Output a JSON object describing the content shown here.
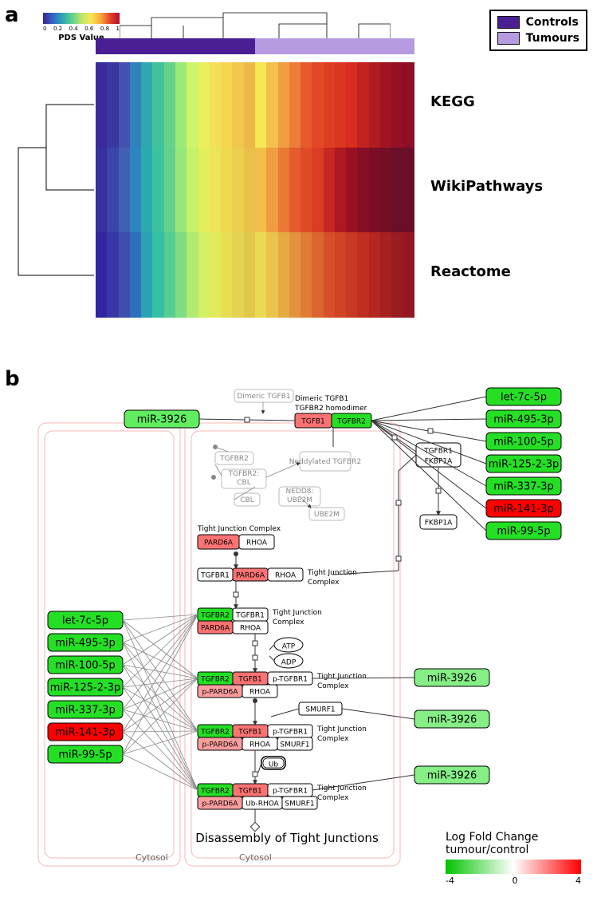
{
  "panel_labels": {
    "a": "a",
    "b": "b"
  },
  "group_legend": {
    "controls": {
      "label": "Controls",
      "color": "#4b1e94"
    },
    "tumours": {
      "label": "Tumours",
      "color": "#b79be0"
    }
  },
  "pds_colorbar": {
    "title": "PDS Value",
    "ticks": [
      "0",
      "0.2",
      "0.4",
      "0.6",
      "0.8",
      "1"
    ],
    "stops": [
      "#3a2590",
      "#3464c8",
      "#2fa3b5",
      "#5ccf90",
      "#b9e56b",
      "#f7e755",
      "#f8a93a",
      "#e5452a",
      "#b00d28"
    ]
  },
  "heatmap": {
    "row_labels": [
      "KEGG",
      "WikiPathways",
      "Reactome"
    ],
    "column_groups": [
      {
        "group": "Controls",
        "fraction": 0.5
      },
      {
        "group": "Tumours",
        "fraction": 0.5
      }
    ],
    "cell_colors": {
      "KEGG_left": [
        "#3a2a9c",
        "#39389e",
        "#4352b0",
        "#3082bd",
        "#2ea7ae",
        "#41c29b",
        "#66d18a",
        "#9de977",
        "#cff36a",
        "#e9ee5e",
        "#f4e056",
        "#f5d551",
        "#f1c84c",
        "#eeb846"
      ],
      "KEGG_right": [
        "#f7e755",
        "#f3c14b",
        "#f09e41",
        "#ec7d38",
        "#e65a2f",
        "#e24826",
        "#de3f23",
        "#db3621",
        "#d62d1e",
        "#c32222",
        "#af1b20",
        "#a01421",
        "#951022",
        "#8c0f24"
      ],
      "Wiki_left": [
        "#3730a0",
        "#3b46a9",
        "#4060b6",
        "#2f85bf",
        "#2aa9b0",
        "#3dc29e",
        "#63d18c",
        "#97e778",
        "#c6f16a",
        "#e3ee5d",
        "#eee457",
        "#efd852",
        "#edce4f",
        "#e8c04a"
      ],
      "Wiki_right": [
        "#f3bf4a",
        "#ef9d40",
        "#ea7936",
        "#e45c2e",
        "#e04b27",
        "#da3e22",
        "#c62722",
        "#ad1921",
        "#961223",
        "#860f24",
        "#7b0e26",
        "#730e27",
        "#6b0e28",
        "#6b0e28"
      ],
      "Reactome_left": [
        "#3426a3",
        "#3738a5",
        "#3d4eaf",
        "#2e6fbc",
        "#29a2b4",
        "#35c0a3",
        "#56cd92",
        "#7fdc82",
        "#b0ea71",
        "#d4f064",
        "#e3ea5a",
        "#e7de54",
        "#e5d250",
        "#e1c64c"
      ],
      "Reactome_right": [
        "#ecd952",
        "#eac34c",
        "#e6aa44",
        "#e3933d",
        "#df7c36",
        "#da662f",
        "#d5502a",
        "#d04325",
        "#c93822",
        "#bf2e20",
        "#b32720",
        "#a72121",
        "#9b1b22",
        "#921824"
      ]
    }
  },
  "lfc_legend": {
    "title": "Log Fold Change tumour/control",
    "min": -4,
    "mid": 0,
    "max": 4,
    "min_color": "#00c400",
    "mid_color": "#ffffff",
    "max_color": "#ff0000"
  },
  "pathway": {
    "title": "Disassembly of Tight Junctions",
    "compartment_label": "Cytosol",
    "top_label1": "Dimeric TGFB1",
    "top_label2": "TGFBR2 homodimer",
    "fkbp_upper": "TGFBR1",
    "fkbp_lower": "FKBP1A",
    "fkbp_single": "FKBP1A",
    "complexes": {
      "dimeric": {
        "tgfb1": {
          "label": "TGFB1",
          "color": "#fd7373"
        },
        "tgfbr2": {
          "label": "TGFBR2",
          "color": "#25df25"
        }
      },
      "tjc": {
        "pard6a": {
          "label": "PARD6A",
          "color": "#fd7373"
        },
        "rhoa": {
          "label": "RHOA",
          "color": "#ffffff"
        }
      },
      "tjc_label": "Tight Junction Complex",
      "row1": [
        {
          "label": "TGFBR1",
          "color": "#ffffff"
        },
        {
          "label": "PARD6A",
          "color": "#fd7373"
        },
        {
          "label": "RHOA",
          "color": "#ffffff"
        }
      ],
      "row1_side": "Tight Junction Complex",
      "row2_top": [
        {
          "label": "TGFBR2",
          "color": "#25df25"
        },
        {
          "label": "TGFBR1",
          "color": "#ffffff"
        }
      ],
      "row2_bot": [
        {
          "label": "PARD6A",
          "color": "#fd7373"
        },
        {
          "label": "RHOA",
          "color": "#ffffff"
        }
      ],
      "row2_side": "Tight Junction Complex",
      "atp": "ATP",
      "adp": "ADP",
      "row3_top": [
        {
          "label": "TGFBR2",
          "color": "#25df25"
        },
        {
          "label": "TGFB1",
          "color": "#fd7373"
        },
        {
          "label": "p-TGFBR1",
          "color": "#ffffff"
        }
      ],
      "row3_bot": [
        {
          "label": "p-PARD6A",
          "color": "#fd9e9e"
        },
        {
          "label": "RHOA",
          "color": "#ffffff"
        }
      ],
      "row3_side": "Tight Junction Complex",
      "smurf": "SMURF1",
      "row4_top": [
        {
          "label": "TGFBR2",
          "color": "#25df25"
        },
        {
          "label": "TGFB1",
          "color": "#fd7373"
        },
        {
          "label": "p-TGFBR1",
          "color": "#ffffff"
        }
      ],
      "row4_bot": [
        {
          "label": "p-PARD6A",
          "color": "#fd9e9e"
        },
        {
          "label": "RHOA",
          "color": "#ffffff"
        },
        {
          "label": "SMURF1",
          "color": "#ffffff"
        }
      ],
      "row4_side": "Tight Junction Complex",
      "ub": "Ub",
      "row5_top": [
        {
          "label": "TGFBR2",
          "color": "#25df25"
        },
        {
          "label": "TGFB1",
          "color": "#fd7373"
        },
        {
          "label": "p-TGFBR1",
          "color": "#ffffff"
        }
      ],
      "row5_bot": [
        {
          "label": "p-PARD6A",
          "color": "#fd9e9e"
        },
        {
          "label": "Ub-RHOA",
          "color": "#ffffff"
        },
        {
          "label": "SMURF1",
          "color": "#ffffff"
        }
      ],
      "row5_side": "Tight Junction Complex"
    },
    "mir3926": {
      "label": "miR-3926",
      "color": "#60ed60"
    },
    "mir3926_right": {
      "label": "miR-3926",
      "color": "#85ee85"
    },
    "mir3926_r3": {
      "label": "miR-3926",
      "color": "#85ee85"
    },
    "mir3926_r4": {
      "label": "miR-3926",
      "color": "#85ee85"
    },
    "gray_nodes": {
      "dimeric_tgfb1": "Dimeric TGFB1",
      "tgfbr2": "TGFBR2",
      "tgfbr2_cbl": "TGFBR2: CBL",
      "cbl": "CBL",
      "nedd8": "NEDD8: UBE2M",
      "neddylated": "Neddylated TGFBR2",
      "ube2m": "UBE2M"
    },
    "mirnas_left": [
      {
        "label": "let-7c-5p",
        "color": "#25df25"
      },
      {
        "label": "miR-495-3p",
        "color": "#25df25"
      },
      {
        "label": "miR-100-5p",
        "color": "#25df25"
      },
      {
        "label": "miR-125-2-3p",
        "color": "#25df25"
      },
      {
        "label": "miR-337-3p",
        "color": "#25df25"
      },
      {
        "label": "miR-141-3p",
        "color": "#ff0000"
      },
      {
        "label": "miR-99-5p",
        "color": "#25df25"
      }
    ],
    "mirnas_right": [
      {
        "label": "let-7c-5p",
        "color": "#25df25"
      },
      {
        "label": "miR-495-3p",
        "color": "#25df25"
      },
      {
        "label": "miR-100-5p",
        "color": "#25df25"
      },
      {
        "label": "miR-125-2-3p",
        "color": "#25df25"
      },
      {
        "label": "miR-337-3p",
        "color": "#25df25"
      },
      {
        "label": "miR-141-3p",
        "color": "#ff0000"
      },
      {
        "label": "miR-99-5p",
        "color": "#25df25"
      }
    ]
  }
}
